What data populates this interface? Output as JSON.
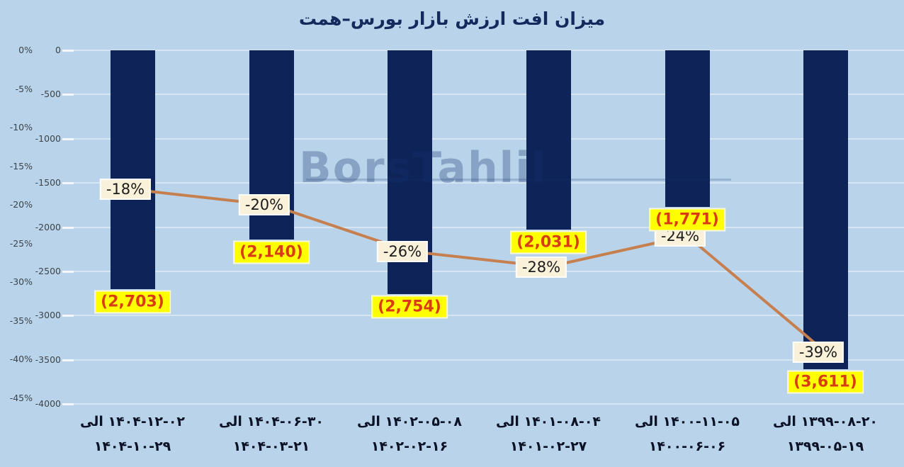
{
  "title": "میزان افت ارزش بازار بورس–همت",
  "watermark": {
    "text": "BorsTahlil"
  },
  "colors": {
    "background": "#b9d4ea",
    "bar": "#0e2459",
    "trend_line": "#c67f4f",
    "percent_label_bg": "#f9f1da",
    "value_label_bg": "#ffff00",
    "value_label_text": "#d93c12",
    "title_text": "#15295c",
    "gridline": "rgba(255,255,255,0.40)"
  },
  "chart_data": {
    "type": "bar",
    "subtype": "combo-bar-line",
    "title": "میزان افت ارزش بازار بورس–همت",
    "xlabel": "",
    "ylabel": "",
    "grid": true,
    "legend": "none",
    "categories": [
      {
        "line1": "۱۴۰۴-۱۲-۰۲ الی",
        "line2": "۱۴۰۴-۱۰-۲۹"
      },
      {
        "line1": "۱۴۰۴-۰۶-۳۰ الی",
        "line2": "۱۴۰۴-۰۳-۲۱"
      },
      {
        "line1": "۱۴۰۲-۰۵-۰۸ الی",
        "line2": "۱۴۰۲-۰۲-۱۶"
      },
      {
        "line1": "۱۴۰۱-۰۸-۰۴ الی",
        "line2": "۱۴۰۱-۰۲-۲۷"
      },
      {
        "line1": "۱۴۰۰-۱۱-۰۵ الی",
        "line2": "۱۴۰۰-۰۶-۰۶"
      },
      {
        "line1": "۱۳۹۹-۰۸-۲۰ الی",
        "line2": "۱۳۹۹-۰۵-۱۹"
      }
    ],
    "series": [
      {
        "name": "bars",
        "type": "bar",
        "axis": "value",
        "values": [
          -2703,
          -2140,
          -2754,
          -2031,
          -1771,
          -3611
        ],
        "labels": [
          "(2,703)",
          "(2,140)",
          "(2,754)",
          "(2,031)",
          "(1,771)",
          "(3,611)"
        ]
      },
      {
        "name": "line",
        "type": "line",
        "axis": "percent",
        "values": [
          -18,
          -20,
          -26,
          -28,
          -24,
          -39
        ],
        "labels": [
          "-18%",
          "-20%",
          "-26%",
          "-28%",
          "-24%",
          "-39%"
        ]
      }
    ],
    "y_axis_percent": {
      "ticks": [
        "0%",
        "-5%",
        "-10%",
        "-15%",
        "-20%",
        "-25%",
        "-30%",
        "-35%",
        "-40%",
        "-45%"
      ],
      "range": [
        0,
        -45
      ]
    },
    "y_axis_value": {
      "ticks": [
        "0",
        "-500",
        "-1000",
        "-1500",
        "-2000",
        "-2500",
        "-3000",
        "-3500",
        "-4000"
      ],
      "range": [
        0,
        -4000
      ]
    }
  }
}
